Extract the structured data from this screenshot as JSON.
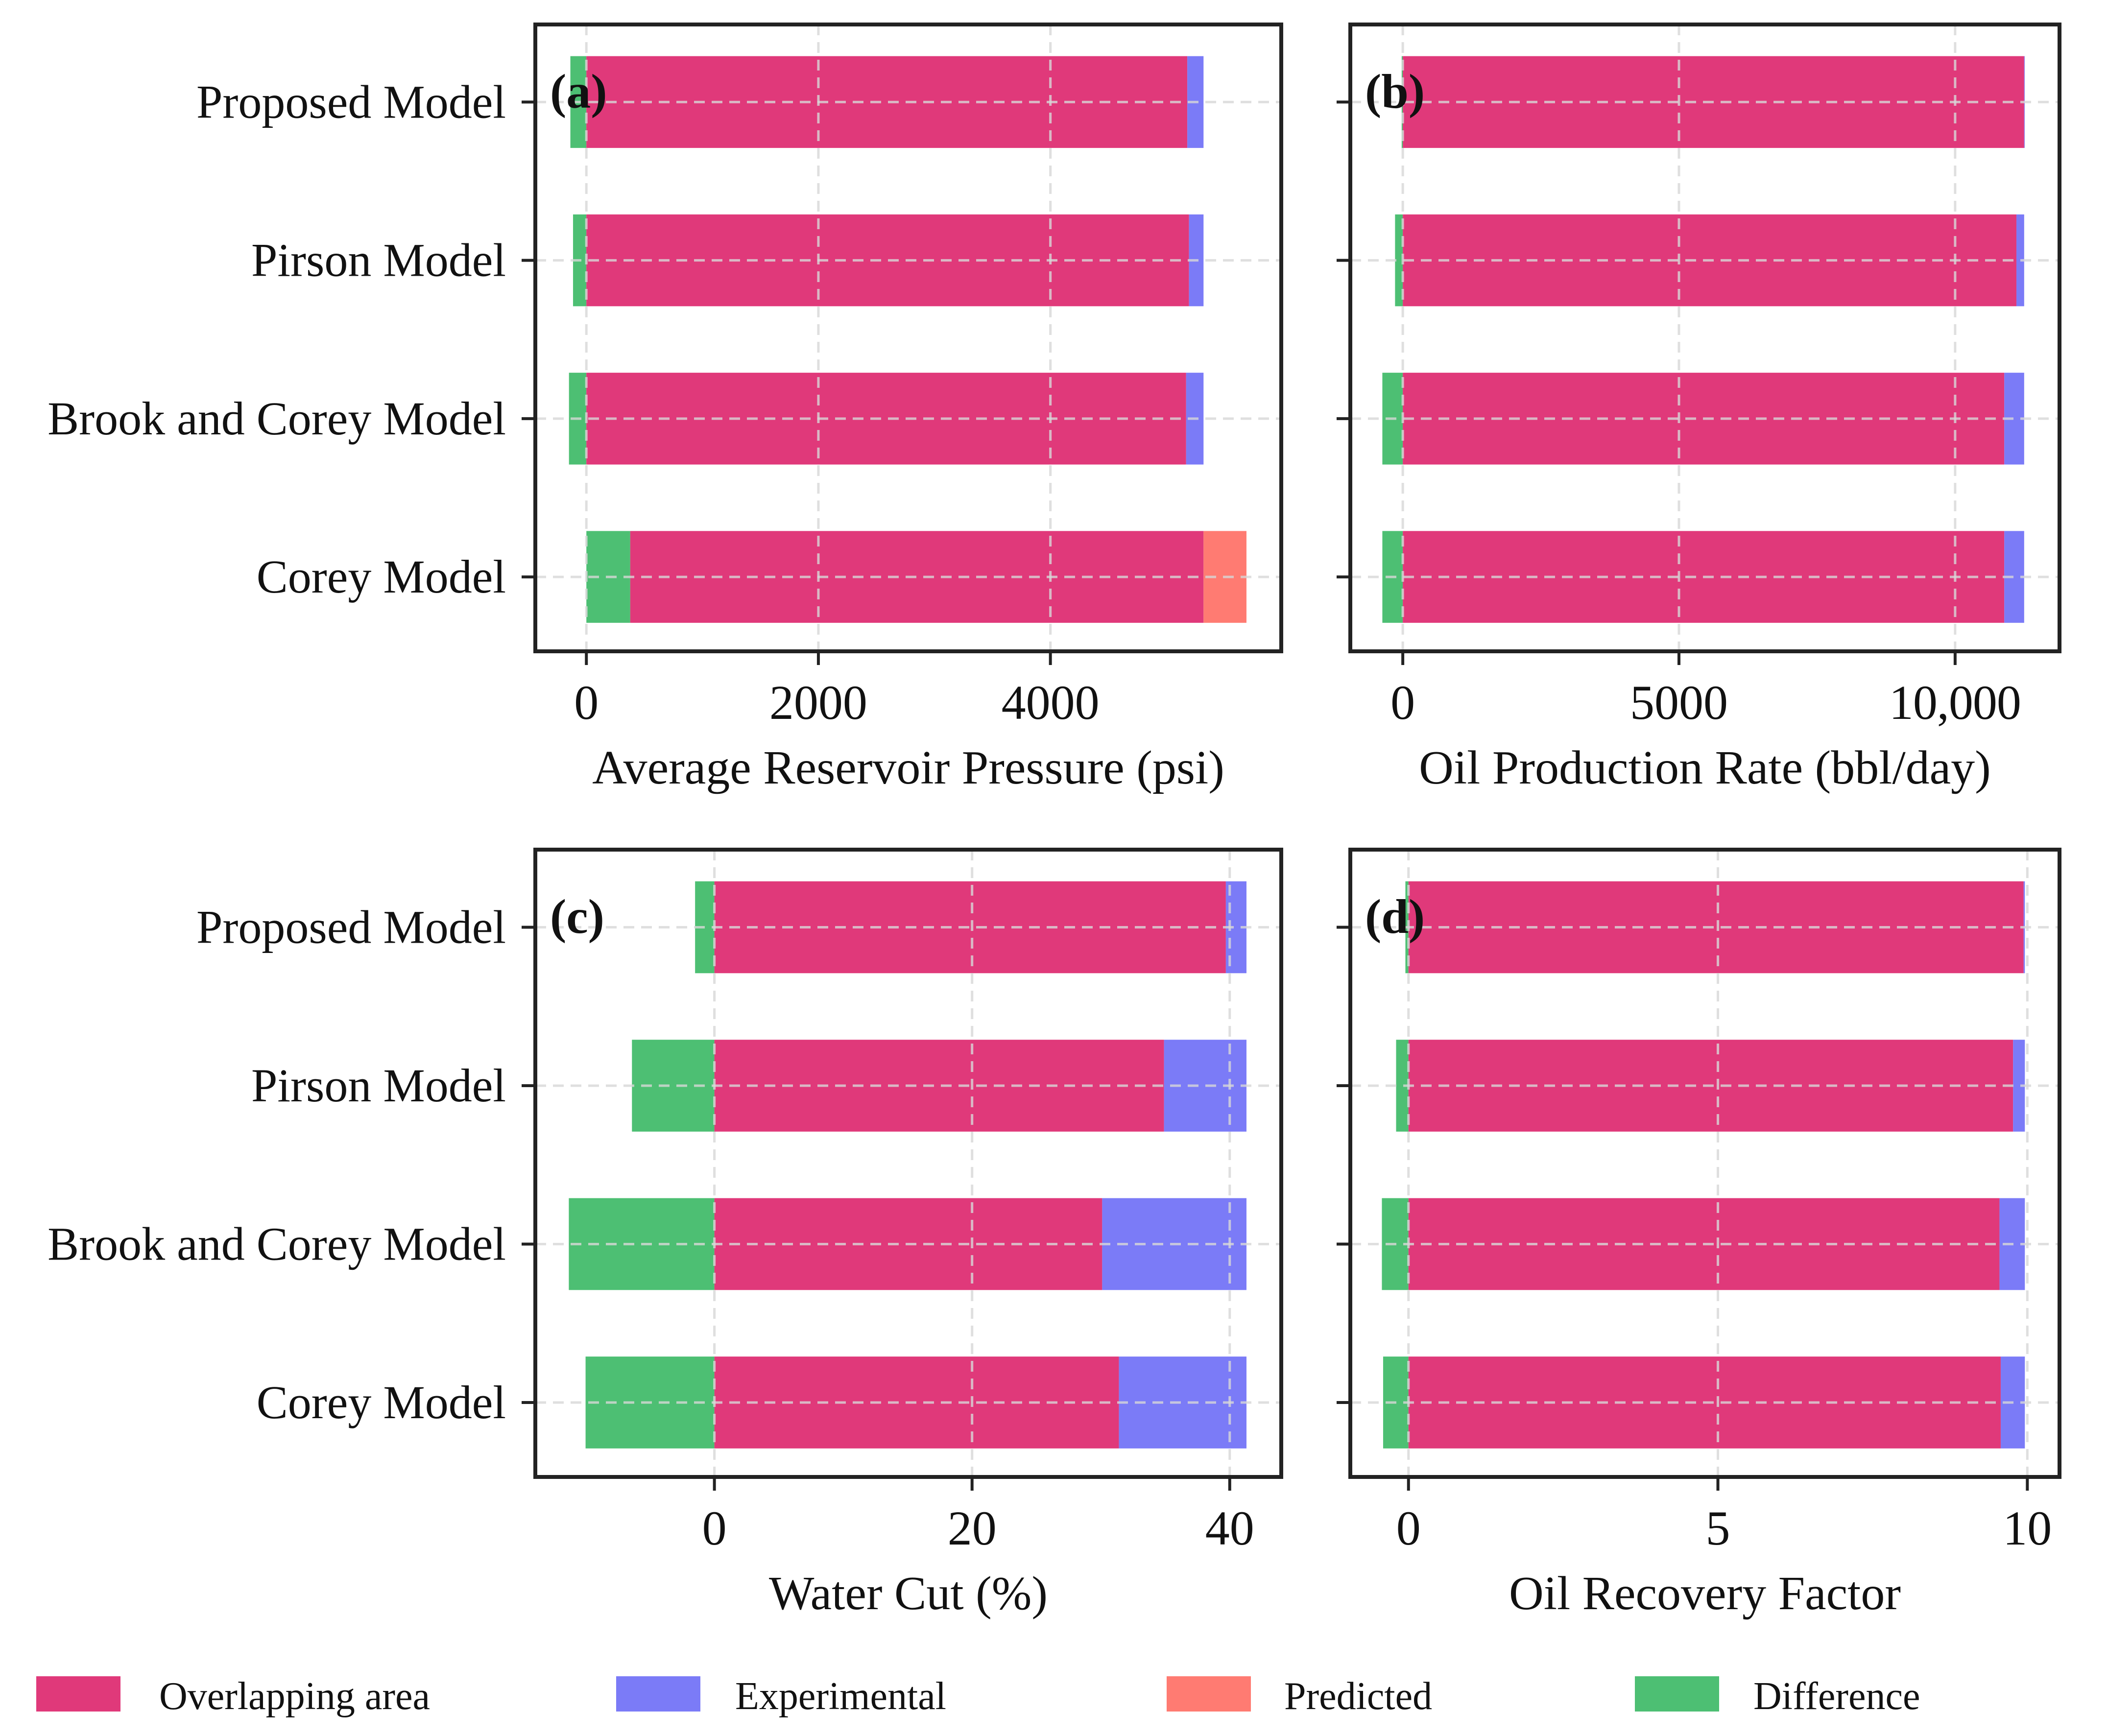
{
  "legend": {
    "items": [
      {
        "label": "Overlapping area",
        "color": "#E0397A"
      },
      {
        "label": "Experimental",
        "color": "#7B7BF7"
      },
      {
        "label": "Predicted",
        "color": "#FF7B72"
      },
      {
        "label": "Difference",
        "color": "#4DBF73"
      }
    ]
  },
  "chart_data": [
    {
      "type": "bar",
      "orientation": "horizontal-stacked",
      "panel": "(a)",
      "xlabel": "Average Reservoir Pressure (psi)",
      "xticks": [
        0,
        2000,
        4000
      ],
      "xtick_labels": [
        "0",
        "2000",
        "4000"
      ],
      "xlim": [
        -440,
        5990
      ],
      "categories": [
        "Corey Model",
        "Brook and Corey Model",
        "Pirson Model",
        "Proposed Model"
      ],
      "bars": [
        {
          "category": "Corey Model",
          "segments": [
            [
              "Difference",
              0,
              378
            ],
            [
              "Overlapping area",
              378,
              5320
            ],
            [
              "Predicted",
              5320,
              5690
            ]
          ]
        },
        {
          "category": "Brook and Corey Model",
          "segments": [
            [
              "Difference",
              -150,
              0
            ],
            [
              "Overlapping area",
              0,
              5170
            ],
            [
              "Experimental",
              5170,
              5320
            ]
          ]
        },
        {
          "category": "Pirson Model",
          "segments": [
            [
              "Difference",
              -115,
              0
            ],
            [
              "Overlapping area",
              0,
              5195
            ],
            [
              "Experimental",
              5195,
              5320
            ]
          ]
        },
        {
          "category": "Proposed Model",
          "segments": [
            [
              "Difference",
              -138,
              0
            ],
            [
              "Overlapping area",
              0,
              5180
            ],
            [
              "Experimental",
              5180,
              5320
            ]
          ]
        }
      ],
      "grid": true
    },
    {
      "type": "bar",
      "orientation": "horizontal-stacked",
      "panel": "(b)",
      "xlabel": "Oil Production Rate (bbl/day)",
      "xticks": [
        0,
        5000,
        10000
      ],
      "xtick_labels": [
        "0",
        "5000",
        "10,000"
      ],
      "xlim": [
        -950,
        11890
      ],
      "categories": [
        "Corey Model",
        "Brook and Corey Model",
        "Pirson Model",
        "Proposed Model"
      ],
      "bars": [
        {
          "category": "Corey Model",
          "segments": [
            [
              "Difference",
              -370,
              0
            ],
            [
              "Overlapping area",
              0,
              10890
            ],
            [
              "Experimental",
              10890,
              11250
            ]
          ]
        },
        {
          "category": "Brook and Corey Model",
          "segments": [
            [
              "Difference",
              -370,
              0
            ],
            [
              "Overlapping area",
              0,
              10890
            ],
            [
              "Experimental",
              10890,
              11250
            ]
          ]
        },
        {
          "category": "Pirson Model",
          "segments": [
            [
              "Difference",
              -140,
              0
            ],
            [
              "Overlapping area",
              0,
              11110
            ],
            [
              "Experimental",
              11110,
              11250
            ]
          ]
        },
        {
          "category": "Proposed Model",
          "segments": [
            [
              "Difference",
              -20,
              0
            ],
            [
              "Overlapping area",
              0,
              11250
            ],
            [
              "Experimental",
              11250,
              11260
            ]
          ]
        }
      ],
      "grid": true
    },
    {
      "type": "bar",
      "orientation": "horizontal-stacked",
      "panel": "(c)",
      "xlabel": "Water Cut (%)",
      "xticks": [
        0,
        20,
        40
      ],
      "xtick_labels": [
        "0",
        "20",
        "40"
      ],
      "xlim": [
        -13.9,
        44.0
      ],
      "categories": [
        "Corey Model",
        "Brook and Corey Model",
        "Pirson Model",
        "Proposed Model"
      ],
      "bars": [
        {
          "category": "Corey Model",
          "segments": [
            [
              "Difference",
              -10.0,
              0
            ],
            [
              "Overlapping area",
              0,
              31.4
            ],
            [
              "Experimental",
              31.4,
              41.3
            ]
          ]
        },
        {
          "category": "Brook and Corey Model",
          "segments": [
            [
              "Difference",
              -11.3,
              0
            ],
            [
              "Overlapping area",
              0,
              30.1
            ],
            [
              "Experimental",
              30.1,
              41.3
            ]
          ]
        },
        {
          "category": "Pirson Model",
          "segments": [
            [
              "Difference",
              -6.4,
              0
            ],
            [
              "Overlapping area",
              0,
              34.9
            ],
            [
              "Experimental",
              34.9,
              41.3
            ]
          ]
        },
        {
          "category": "Proposed Model",
          "segments": [
            [
              "Difference",
              -1.5,
              0
            ],
            [
              "Overlapping area",
              0,
              39.7
            ],
            [
              "Experimental",
              39.7,
              41.3
            ]
          ]
        }
      ],
      "grid": true
    },
    {
      "type": "bar",
      "orientation": "horizontal-stacked",
      "panel": "(d)",
      "xlabel": "Oil Recovery Factor",
      "xticks": [
        0,
        5,
        10
      ],
      "xtick_labels": [
        "0",
        "5",
        "10"
      ],
      "xlim": [
        -0.94,
        10.52
      ],
      "categories": [
        "Corey Model",
        "Brook and Corey Model",
        "Pirson Model",
        "Proposed Model"
      ],
      "bars": [
        {
          "category": "Corey Model",
          "segments": [
            [
              "Difference",
              -0.41,
              0
            ],
            [
              "Overlapping area",
              0,
              9.57
            ],
            [
              "Experimental",
              9.57,
              9.96
            ]
          ]
        },
        {
          "category": "Brook and Corey Model",
          "segments": [
            [
              "Difference",
              -0.43,
              0
            ],
            [
              "Overlapping area",
              0,
              9.55
            ],
            [
              "Experimental",
              9.55,
              9.96
            ]
          ]
        },
        {
          "category": "Pirson Model",
          "segments": [
            [
              "Difference",
              -0.2,
              0
            ],
            [
              "Overlapping area",
              0,
              9.77
            ],
            [
              "Experimental",
              9.77,
              9.96
            ]
          ]
        },
        {
          "category": "Proposed Model",
          "segments": [
            [
              "Difference",
              -0.05,
              0
            ],
            [
              "Overlapping area",
              0,
              9.94
            ],
            [
              "Experimental",
              9.94,
              9.96
            ]
          ]
        }
      ],
      "grid": true
    }
  ]
}
